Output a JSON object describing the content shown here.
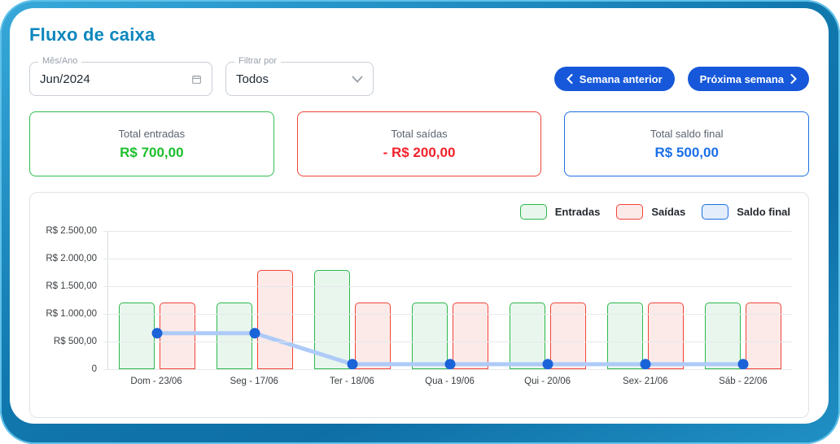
{
  "page": {
    "title": "Fluxo de caixa"
  },
  "filters": {
    "month_field": {
      "label": "Mês/Ano",
      "value": "Jun/2024",
      "icon": "calendar-icon"
    },
    "filter_field": {
      "label": "Filtrar por",
      "value": "Todos",
      "icon": "chevron-down-icon"
    }
  },
  "week_nav": {
    "previous_label": "Semana anterior",
    "next_label": "Próxima semana",
    "button_color": "#1658d9"
  },
  "summary_cards": [
    {
      "label": "Total entradas",
      "value": "R$ 700,00",
      "value_color": "#1dbe2d",
      "border_color": "#2ebd51"
    },
    {
      "label": "Total saídas",
      "value": "- R$ 200,00",
      "value_color": "#f3222b",
      "border_color": "#f04438"
    },
    {
      "label": "Total saldo final",
      "value": "R$ 500,00",
      "value_color": "#1b6fe8",
      "border_color": "#1d6fe0"
    }
  ],
  "chart_data": {
    "type": "bar",
    "title": "",
    "categories": [
      "Dom - 23/06",
      "Seg - 17/06",
      "Ter - 18/06",
      "Qua - 19/06",
      "Qui - 20/06",
      "Sex- 21/06",
      "Sáb - 22/06"
    ],
    "series": [
      {
        "name": "Entradas",
        "type": "bar",
        "values": [
          1200,
          1200,
          1800,
          1200,
          1200,
          1200,
          1200
        ],
        "fill": "#e9f6ee",
        "border": "#2bb84c"
      },
      {
        "name": "Saídas",
        "type": "bar",
        "values": [
          1200,
          1800,
          1200,
          1200,
          1200,
          1200,
          1200
        ],
        "fill": "#fceae9",
        "border": "#f04438"
      },
      {
        "name": "Saldo final",
        "type": "line",
        "values": [
          650,
          650,
          90,
          90,
          90,
          90,
          90
        ],
        "line_color": "#aecbf8",
        "dot_color": "#1a63d8"
      }
    ],
    "y_ticks": [
      "R$ 2.500,00",
      "R$ 2.000,00",
      "R$ 1.500,00",
      "R$ 1.000,00",
      "R$ 500,00",
      "0"
    ],
    "ylim": [
      0,
      2500
    ],
    "grid": true,
    "legend_position": "top-right",
    "legend": [
      {
        "label": "Entradas",
        "fill": "#e9f6ee",
        "border": "#2bb84c"
      },
      {
        "label": "Saídas",
        "fill": "#fceae9",
        "border": "#f04438"
      },
      {
        "label": "Saldo final",
        "fill": "#e3edfb",
        "border": "#1d6fe0"
      }
    ]
  }
}
